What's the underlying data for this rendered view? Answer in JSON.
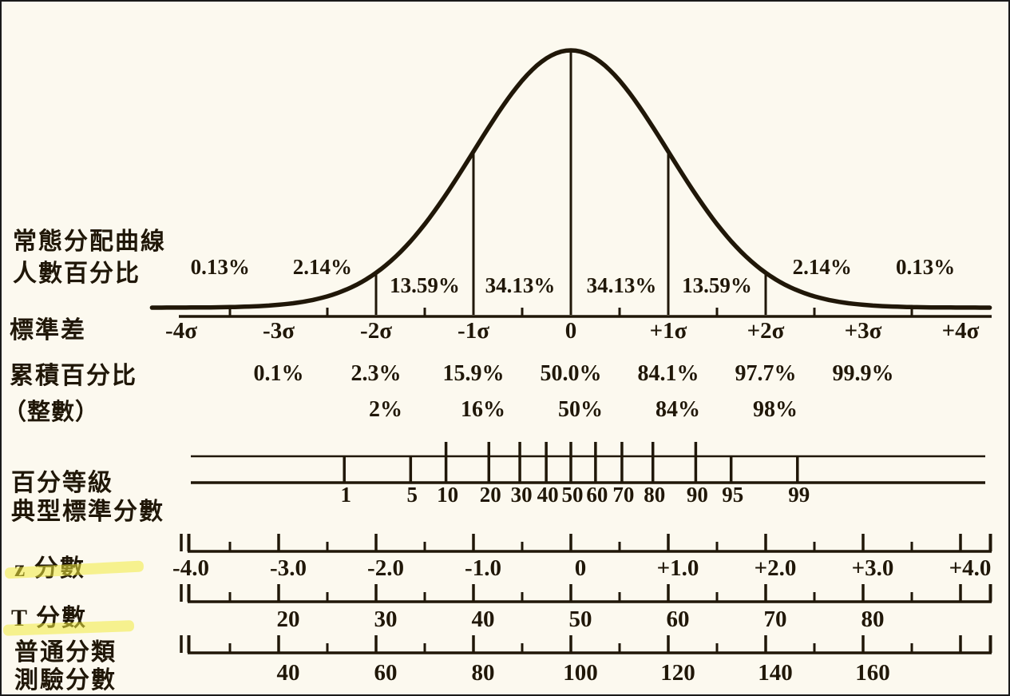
{
  "figure": {
    "background": "#fcf9ef",
    "ink": "#201708",
    "highlight": "#f0eb3e",
    "border": "#1a1a1a"
  },
  "labels": {
    "curve_line1": "常態分配曲線",
    "curve_line2": "人數百分比",
    "sd": "標準差",
    "cumulative": "累積百分比",
    "cumulative_int": "（整數）",
    "percentile": "百分等級",
    "typical": "典型標準分數",
    "z": "z 分數",
    "t": "T 分數",
    "common_line1": "普通分類",
    "common_line2": "測驗分數"
  },
  "chart_data": {
    "type": "area",
    "title": "常態分配曲線 (normal distribution curve with derived score scales)",
    "band_percentages": {
      "categories": [
        "-4σ~-3σ",
        "-3σ~-2σ",
        "-2σ~-1σ",
        "-1σ~0",
        "0~+1σ",
        "+1σ~+2σ",
        "+2σ~+3σ",
        "+3σ~+4σ"
      ],
      "values": [
        0.13,
        2.14,
        13.59,
        34.13,
        34.13,
        13.59,
        2.14,
        0.13
      ],
      "display": [
        "0.13%",
        "2.14%",
        "13.59%",
        "34.13%",
        "34.13%",
        "13.59%",
        "2.14%",
        "0.13%"
      ]
    },
    "standard_deviations": [
      "-4σ",
      "-3σ",
      "-2σ",
      "-1σ",
      "0",
      "+1σ",
      "+2σ",
      "+3σ",
      "+4σ"
    ],
    "cumulative_percentages": {
      "sigma": [
        -3,
        -2,
        -1,
        0,
        1,
        2,
        3
      ],
      "display": [
        "0.1%",
        "2.3%",
        "15.9%",
        "50.0%",
        "84.1%",
        "97.7%",
        "99.9%"
      ]
    },
    "cumulative_rounded": {
      "sigma": [
        -2,
        -1,
        0,
        1,
        2
      ],
      "display": [
        "2%",
        "16%",
        "50%",
        "84%",
        "98%"
      ]
    },
    "percentile_ranks": {
      "values": [
        1,
        5,
        10,
        20,
        30,
        40,
        50,
        60,
        70,
        80,
        90,
        95,
        99
      ]
    },
    "z_scores": {
      "labels": [
        "-4.0",
        "-3.0",
        "-2.0",
        "-1.0",
        "0",
        "+1.0",
        "+2.0",
        "+3.0",
        "+4.0"
      ],
      "axis_range": [
        -4,
        4
      ]
    },
    "t_scores": {
      "labels": [
        "20",
        "30",
        "40",
        "50",
        "60",
        "70",
        "80"
      ],
      "mean": 50,
      "sd_unit": 10
    },
    "classification_test_scores": {
      "labels": [
        "40",
        "60",
        "80",
        "100",
        "120",
        "140",
        "160"
      ],
      "mean": 100,
      "sd_unit": 20
    }
  }
}
